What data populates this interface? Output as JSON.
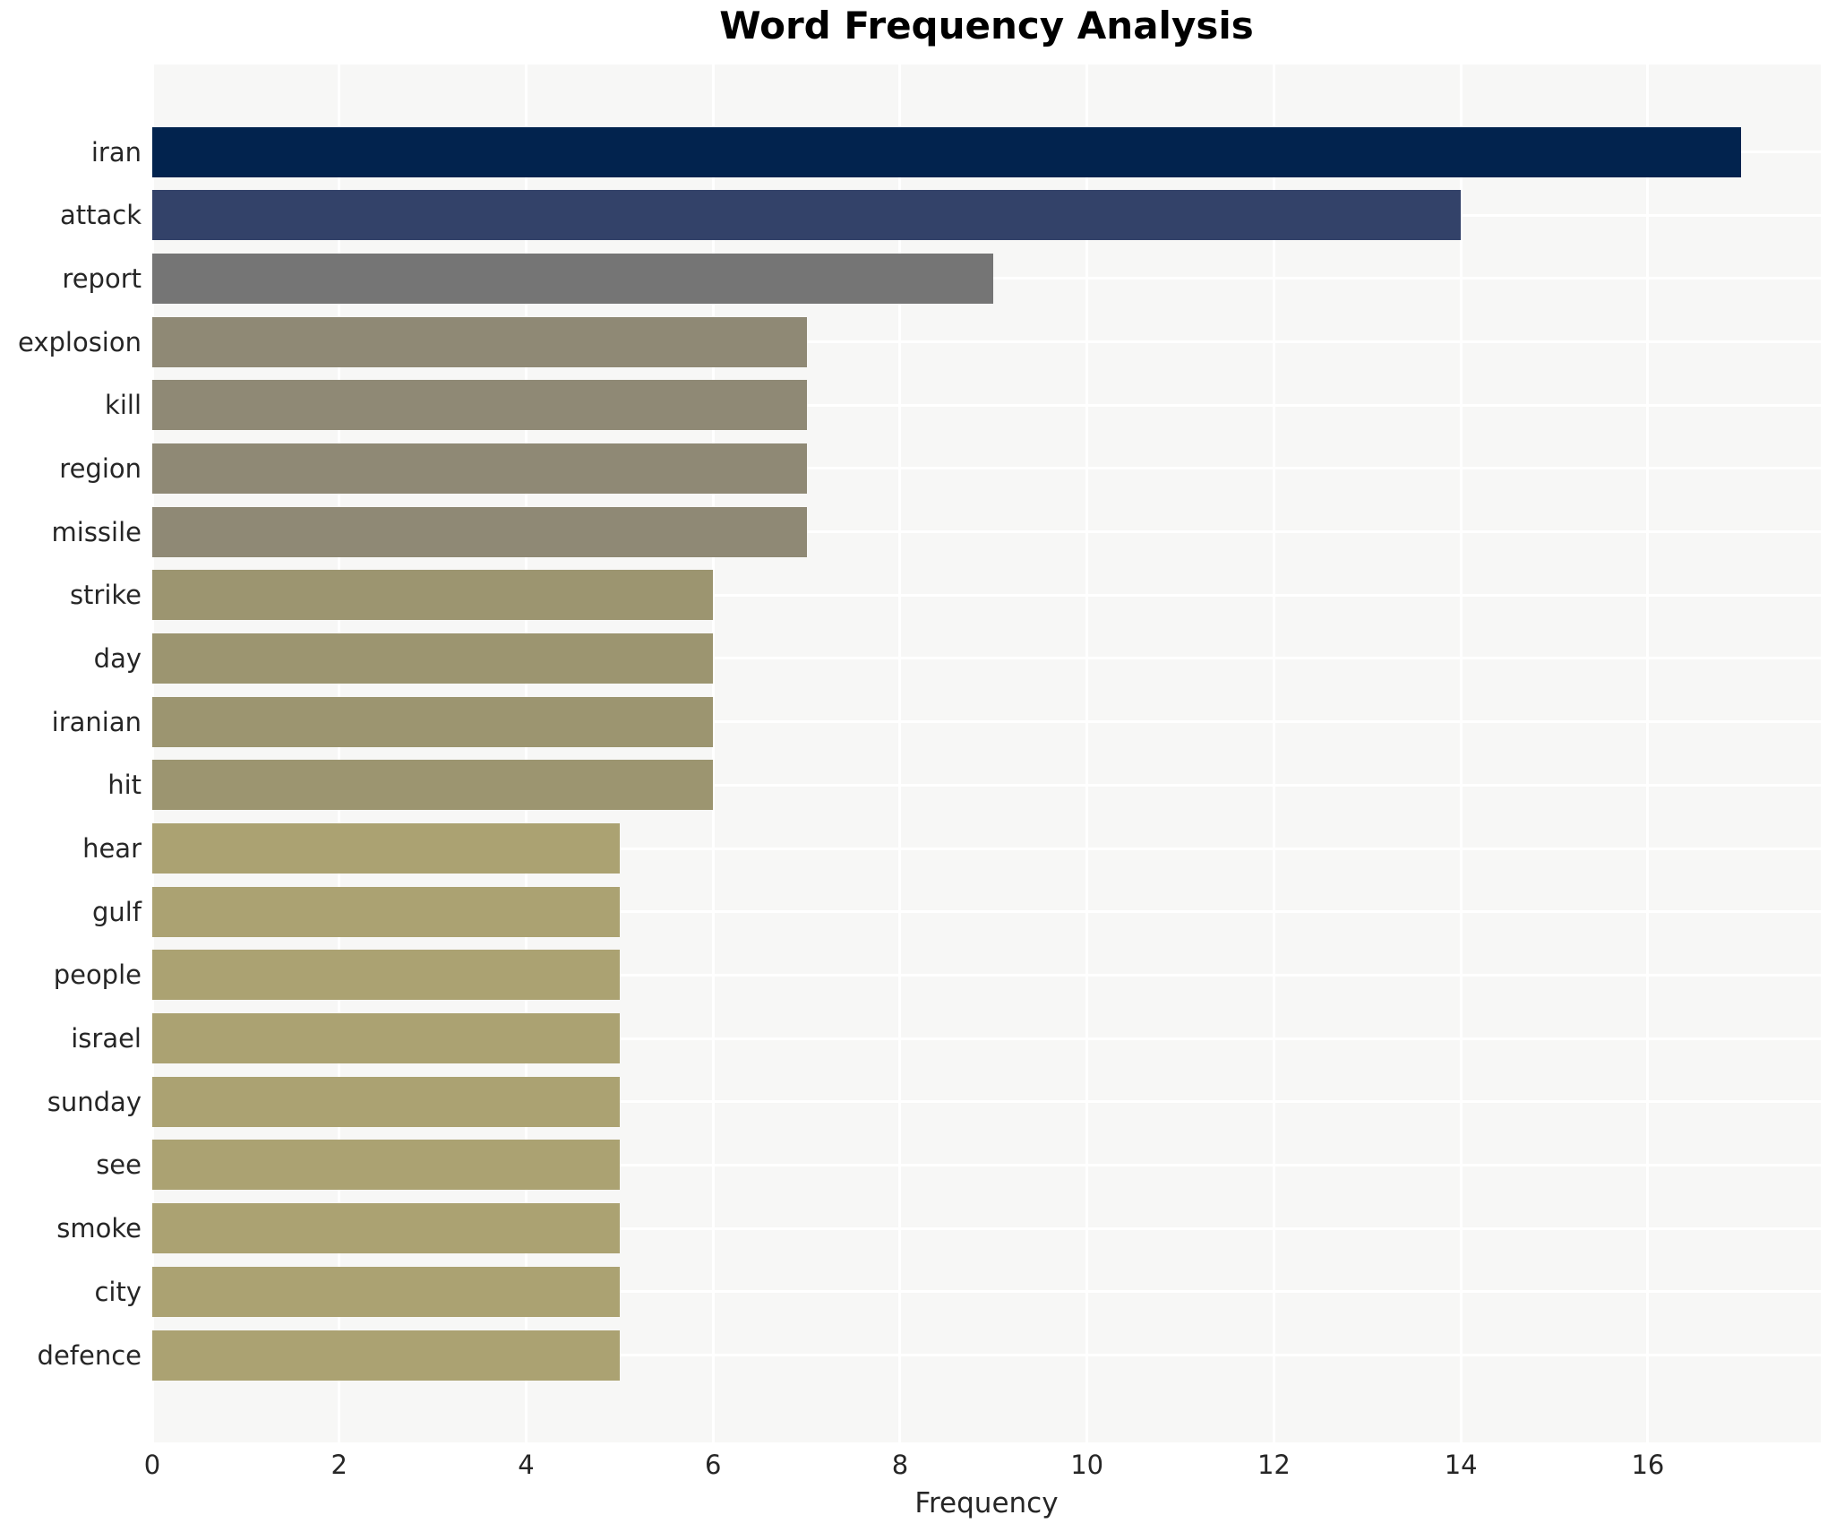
{
  "chart_data": {
    "type": "bar",
    "orientation": "horizontal",
    "title": "Word Frequency Analysis",
    "xlabel": "Frequency",
    "ylabel": "",
    "categories": [
      "iran",
      "attack",
      "report",
      "explosion",
      "kill",
      "region",
      "missile",
      "strike",
      "day",
      "iranian",
      "hit",
      "hear",
      "gulf",
      "people",
      "israel",
      "sunday",
      "see",
      "smoke",
      "city",
      "defence"
    ],
    "values": [
      17,
      14,
      9,
      7,
      7,
      7,
      7,
      6,
      6,
      6,
      6,
      5,
      5,
      5,
      5,
      5,
      5,
      5,
      5,
      5
    ],
    "bar_colors": [
      "#02234e",
      "#334269",
      "#757575",
      "#8f8975",
      "#8f8975",
      "#8f8975",
      "#8f8975",
      "#9c9570",
      "#9c9570",
      "#9c9570",
      "#9c9570",
      "#aba272",
      "#aba272",
      "#aba272",
      "#aba272",
      "#aba272",
      "#aba272",
      "#aba272",
      "#aba272",
      "#aba272"
    ],
    "x_ticks": [
      0,
      2,
      4,
      6,
      8,
      10,
      12,
      14,
      16
    ],
    "xlim": [
      0,
      17.85
    ],
    "grid": true,
    "legend": "none",
    "plot_background": "#f7f7f6",
    "gridline_color": "#ffffff",
    "figure_background": "#ffffff"
  }
}
